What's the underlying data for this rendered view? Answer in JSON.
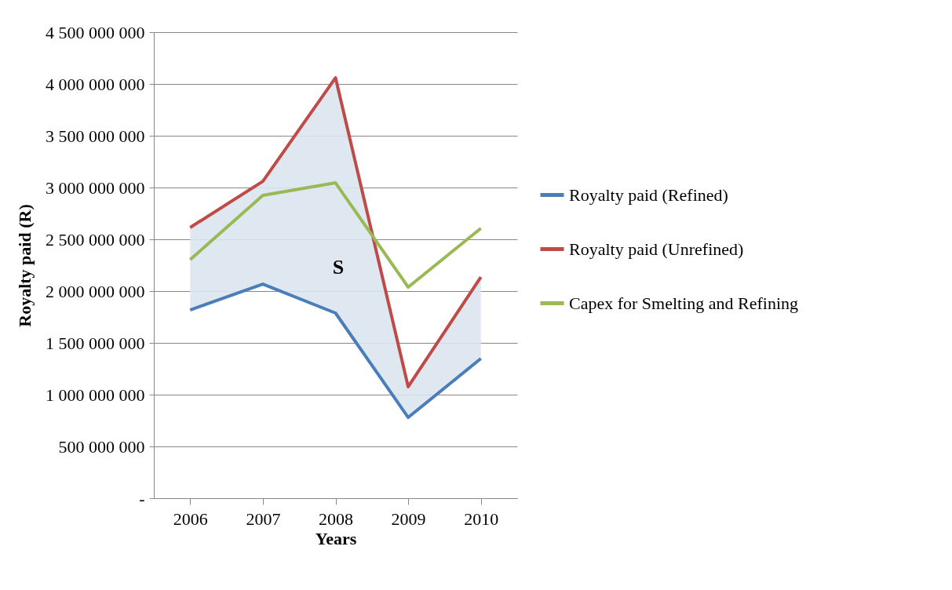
{
  "chart_data": {
    "type": "line",
    "xlabel": "Years",
    "ylabel": "Royalty paid (R)",
    "categories": [
      "2006",
      "2007",
      "2008",
      "2009",
      "2010"
    ],
    "series": [
      {
        "name": "Royalty paid (Refined)",
        "color": "#4a7ebb",
        "values": [
          1818000000,
          2068000000,
          1788000000,
          780000000,
          1348000000
        ],
        "upper": [
          2614000000,
          3060000000,
          4060000000,
          1076000000,
          2136000000
        ],
        "lower": [
          1818000000,
          2068000000,
          1788000000,
          780000000,
          1348000000
        ]
      },
      {
        "name": "Royalty paid (Unrefined)",
        "color": "#be4b48",
        "values": [
          2614000000,
          3060000000,
          4060000000,
          1076000000,
          2136000000
        ]
      },
      {
        "name": "Capex for Smelting and Refining",
        "color": "#98b954",
        "values": [
          2303000000,
          2924000000,
          3045000000,
          2038000000,
          2606000000
        ]
      }
    ],
    "ylim": [
      0,
      4500000000
    ],
    "yticks": [
      {
        "value": 0,
        "label": "-"
      },
      500000000,
      1000000000,
      1500000000,
      2000000000,
      2500000000,
      3000000000,
      3500000000,
      4000000000,
      4500000000
    ],
    "annotations": [
      "S"
    ],
    "grid": "y",
    "legend": "right",
    "marker": "none",
    "line_style": "solid"
  }
}
